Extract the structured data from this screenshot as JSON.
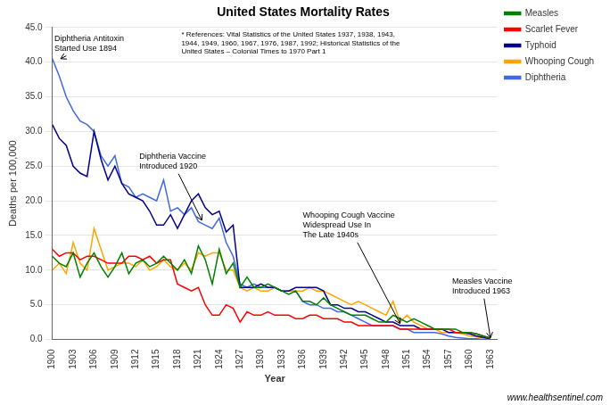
{
  "chart_data": {
    "type": "line",
    "title": "United States Mortality Rates",
    "x_label": "Year",
    "y_label": "Deaths per 100,000",
    "source_note": "* References: Vital Statistics of the United States 1937, 1938, 1943,\n1944, 1949, 1960, 1967, 1976, 1987, 1992; Historical Statistics of the\nUnited States – Colonial Times to 1970 Part 1",
    "credit": "www.healthsentinel.com",
    "x": [
      1900,
      1901,
      1902,
      1903,
      1904,
      1905,
      1906,
      1907,
      1908,
      1909,
      1910,
      1911,
      1912,
      1913,
      1914,
      1915,
      1916,
      1917,
      1918,
      1919,
      1920,
      1921,
      1922,
      1923,
      1924,
      1925,
      1926,
      1927,
      1928,
      1929,
      1930,
      1931,
      1932,
      1933,
      1934,
      1935,
      1936,
      1937,
      1938,
      1939,
      1940,
      1941,
      1942,
      1943,
      1944,
      1945,
      1946,
      1947,
      1948,
      1949,
      1950,
      1951,
      1952,
      1953,
      1954,
      1955,
      1956,
      1957,
      1958,
      1959,
      1960,
      1961,
      1962,
      1963
    ],
    "series": [
      {
        "name": "Measles",
        "color": "#008000",
        "values": [
          12.0,
          11.0,
          10.5,
          12.5,
          9.0,
          11.0,
          12.5,
          10.5,
          9.0,
          10.5,
          12.5,
          9.5,
          11.0,
          11.5,
          10.5,
          11.0,
          12.0,
          11.0,
          10.0,
          11.5,
          9.5,
          13.5,
          11.5,
          8.0,
          13.0,
          9.5,
          11.0,
          7.5,
          9.0,
          7.5,
          7.5,
          8.0,
          7.5,
          7.0,
          6.5,
          7.0,
          5.5,
          5.5,
          5.0,
          6.0,
          5.0,
          4.5,
          4.0,
          3.5,
          3.5,
          3.5,
          3.0,
          2.5,
          2.5,
          3.5,
          3.0,
          2.5,
          3.0,
          2.5,
          2.0,
          1.5,
          1.5,
          1.5,
          1.5,
          1.0,
          1.0,
          0.8,
          0.5,
          0.2
        ]
      },
      {
        "name": "Scarlet Fever",
        "color": "#ff0000",
        "values": [
          13.0,
          12.0,
          12.5,
          12.5,
          11.5,
          12.0,
          12.0,
          11.5,
          11.0,
          11.0,
          11.0,
          12.0,
          12.0,
          11.5,
          12.0,
          11.0,
          11.5,
          11.5,
          8.0,
          7.5,
          7.0,
          7.5,
          5.0,
          3.5,
          3.5,
          5.0,
          4.5,
          2.5,
          4.0,
          3.5,
          3.5,
          4.0,
          3.5,
          3.5,
          3.5,
          3.0,
          3.0,
          3.5,
          3.5,
          3.0,
          3.0,
          3.0,
          2.5,
          2.5,
          2.0,
          2.0,
          2.0,
          2.0,
          2.0,
          2.0,
          1.5,
          1.5,
          1.5,
          1.5,
          1.5,
          1.5,
          1.5,
          1.5,
          1.0,
          1.0,
          1.0,
          0.8,
          0.5,
          0.2
        ]
      },
      {
        "name": "Typhoid",
        "color": "#00008b",
        "values": [
          31.0,
          29.0,
          28.0,
          25.0,
          24.0,
          23.5,
          30.0,
          26.0,
          23.0,
          25.0,
          22.5,
          21.0,
          20.5,
          20.0,
          18.5,
          16.5,
          16.5,
          18.0,
          16.0,
          18.0,
          20.0,
          21.0,
          19.0,
          18.0,
          18.5,
          15.5,
          16.5,
          7.5,
          7.5,
          7.5,
          8.0,
          7.5,
          7.5,
          7.0,
          7.0,
          7.5,
          7.5,
          7.5,
          7.5,
          7.0,
          5.0,
          5.0,
          4.5,
          4.5,
          4.0,
          4.0,
          3.5,
          3.0,
          2.5,
          2.5,
          2.0,
          2.0,
          2.0,
          1.5,
          1.5,
          1.5,
          1.5,
          1.0,
          1.0,
          1.0,
          0.8,
          0.5,
          0.3,
          0.1
        ]
      },
      {
        "name": "Whooping Cough",
        "color": "#ffa500",
        "values": [
          10.0,
          11.0,
          9.5,
          14.0,
          11.0,
          10.0,
          16.0,
          13.0,
          10.0,
          10.5,
          11.0,
          11.0,
          10.5,
          11.5,
          10.0,
          10.5,
          11.5,
          10.5,
          10.0,
          11.0,
          10.0,
          12.5,
          12.0,
          12.5,
          12.5,
          10.0,
          10.0,
          7.5,
          7.0,
          7.5,
          7.0,
          7.0,
          7.5,
          7.0,
          7.0,
          7.0,
          7.0,
          7.5,
          7.0,
          7.0,
          6.5,
          6.0,
          5.5,
          5.0,
          5.5,
          5.0,
          4.5,
          4.0,
          3.5,
          5.5,
          2.5,
          3.5,
          2.5,
          2.0,
          1.5,
          1.5,
          1.0,
          1.0,
          1.0,
          0.8,
          0.5,
          0.4,
          0.2,
          0.1
        ]
      },
      {
        "name": "Diphtheria",
        "color": "#4169e1",
        "values": [
          40.5,
          38.0,
          35.0,
          33.0,
          31.5,
          31.0,
          30.0,
          26.5,
          25.0,
          26.5,
          22.5,
          22.0,
          20.5,
          21.0,
          20.5,
          20.0,
          23.0,
          18.5,
          19.0,
          18.0,
          19.0,
          17.0,
          16.5,
          16.0,
          17.5,
          14.0,
          12.0,
          8.0,
          7.5,
          8.0,
          7.5,
          7.5,
          7.5,
          7.0,
          7.0,
          7.0,
          5.5,
          5.0,
          5.0,
          4.5,
          4.5,
          4.0,
          4.0,
          3.5,
          3.0,
          2.5,
          2.0,
          2.0,
          2.0,
          2.0,
          1.5,
          1.5,
          1.0,
          1.0,
          1.0,
          1.0,
          0.8,
          0.5,
          0.3,
          0.2,
          0.1,
          0.1,
          0.0,
          0.0
        ]
      }
    ],
    "xlim": [
      1900,
      1964
    ],
    "xticks": [
      1900,
      1903,
      1906,
      1909,
      1912,
      1915,
      1918,
      1921,
      1924,
      1927,
      1930,
      1933,
      1936,
      1939,
      1942,
      1945,
      1948,
      1951,
      1954,
      1957,
      1960,
      1963
    ],
    "ylim": [
      0,
      45
    ],
    "yticks": [
      {
        "value": 0,
        "label": "0.0"
      },
      {
        "value": 5,
        "label": "5.0"
      },
      {
        "value": 10,
        "label": "10.0"
      },
      {
        "value": 15,
        "label": "15.0"
      },
      {
        "value": 20,
        "label": "20.0"
      },
      {
        "value": 25,
        "label": "25.0"
      },
      {
        "value": 30,
        "label": "30.0"
      },
      {
        "value": 35,
        "label": "35.0"
      },
      {
        "value": 40,
        "label": "40.0"
      },
      {
        "value": 45,
        "label": "45.0"
      }
    ],
    "grid": "y",
    "legend": "upper right",
    "annotations": [
      {
        "text": "Diphtheria Antitoxin\nStarted Use 1894",
        "x": 1901.2,
        "y": 40.5,
        "text_x": 1900.3,
        "text_y": 44.0
      },
      {
        "text": "Diphtheria Vaccine\nIntroduced 1920",
        "x": 1921.5,
        "y": 17.2,
        "text_x": 1912.5,
        "text_y": 27.0
      },
      {
        "text": "Whooping Cough Vaccine\nWidespread Use In\nThe Late 1940s",
        "x": 1950.0,
        "y": 2.3,
        "text_x": 1936.0,
        "text_y": 18.5
      },
      {
        "text": "Measles Vaccine\nIntroduced 1963",
        "x": 1963.0,
        "y": 0.25,
        "text_x": 1957.5,
        "text_y": 9.0
      }
    ]
  }
}
